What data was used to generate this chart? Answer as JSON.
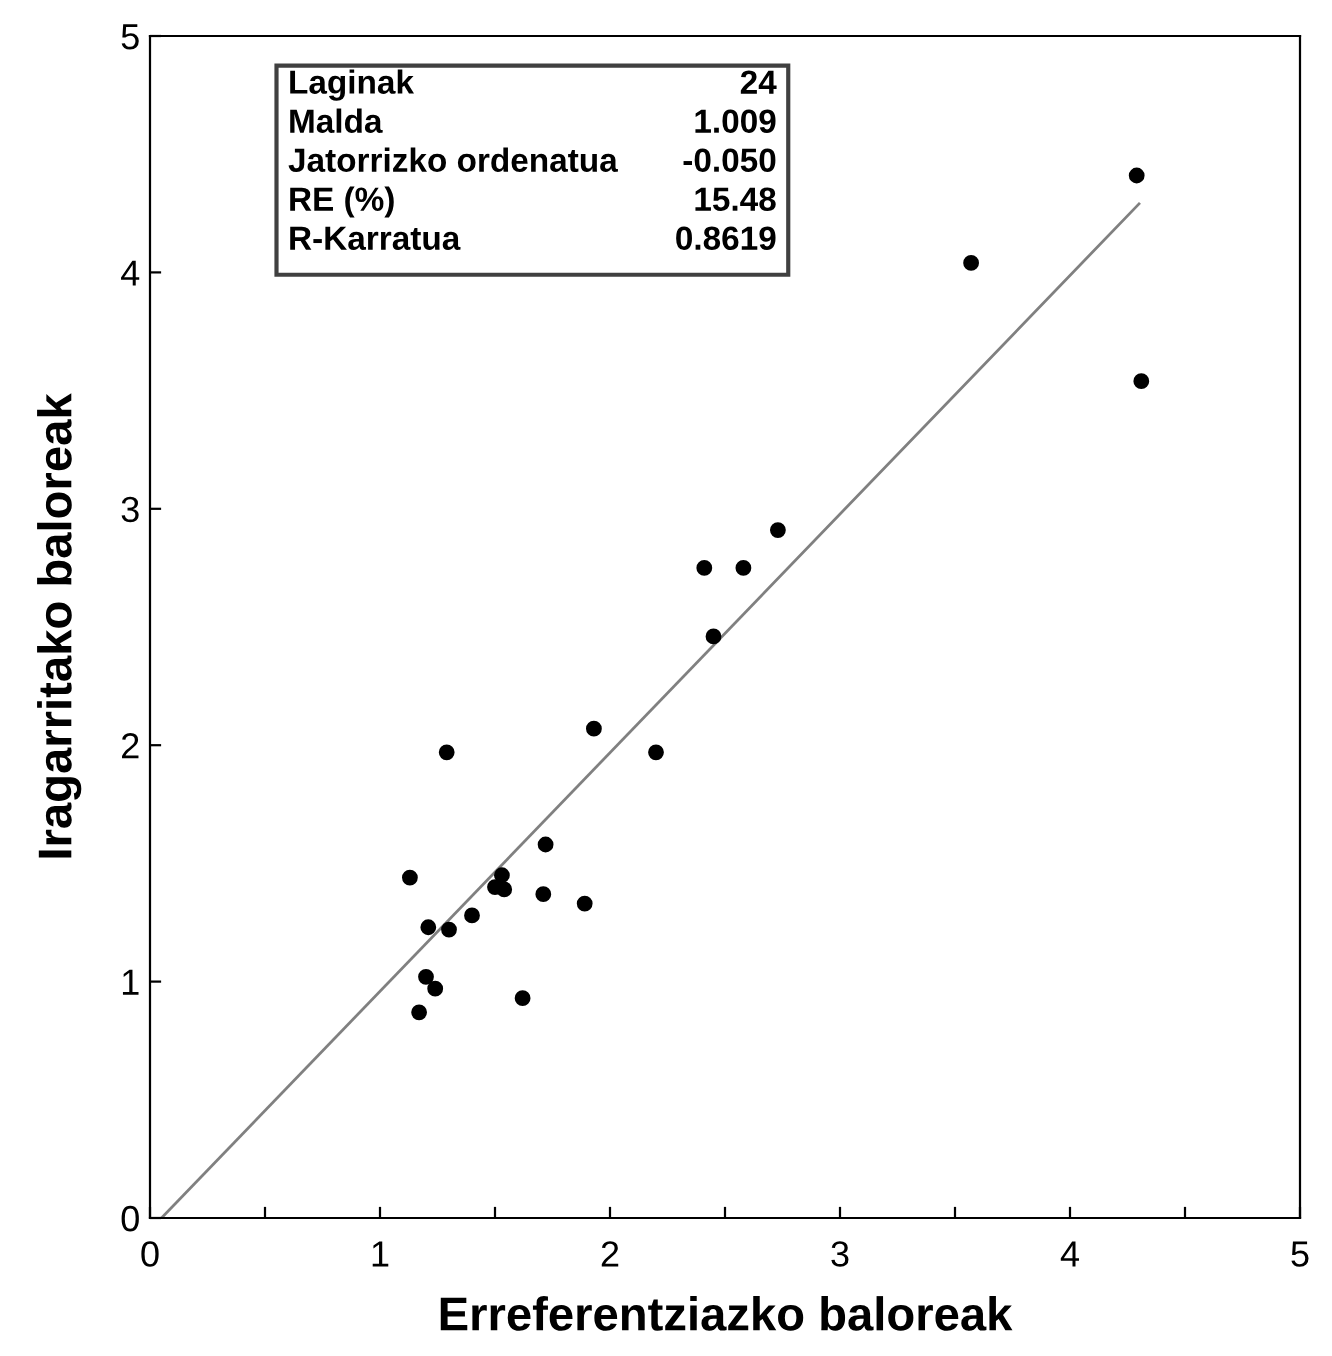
{
  "chart_data": {
    "type": "scatter",
    "xlabel": "Erreferentziazko baloreak",
    "ylabel": "Iragarritako baloreak",
    "annotations": [
      "Laginak",
      "24",
      "Malda",
      "1.009",
      "Jatorrizko ordenatua",
      "-0.050",
      "RE (%)",
      "15.48",
      "R-Karratua",
      "0.8619"
    ],
    "series": [
      {
        "color": "#000000",
        "marker": "circle",
        "x": [
          1.29,
          1.93,
          2.2,
          1.13,
          1.72,
          1.53,
          1.5,
          1.54,
          1.71,
          1.89,
          1.21,
          1.3,
          1.4,
          1.2,
          1.24,
          1.17,
          1.62,
          4.29,
          3.57,
          4.31,
          2.73,
          2.41,
          2.58,
          2.45
        ],
        "values": [
          1.97,
          2.07,
          1.97,
          1.44,
          1.58,
          1.45,
          1.4,
          1.39,
          1.37,
          1.33,
          1.23,
          1.22,
          1.28,
          1.02,
          0.97,
          0.87,
          0.93,
          4.41,
          4.04,
          3.54,
          2.91,
          2.75,
          2.75,
          2.46
        ]
      },
      {
        "type": "line",
        "color": "#808080",
        "marker": "none",
        "x": [
          0.05,
          4.3
        ],
        "values": [
          0.0,
          4.29
        ]
      }
    ],
    "xlim": [
      0,
      5
    ],
    "ylim": [
      0,
      5
    ],
    "xticks": [
      0,
      {
        "value": 0.5,
        "label": null
      },
      1,
      {
        "value": 1.5,
        "label": null
      },
      2,
      {
        "value": 2.5,
        "label": null
      },
      3,
      {
        "value": 3.5,
        "label": null
      },
      4,
      {
        "value": 4.5,
        "label": null
      },
      5
    ],
    "yticks": [
      0,
      1,
      2,
      3,
      4,
      5
    ],
    "grid": false,
    "legend": false
  }
}
